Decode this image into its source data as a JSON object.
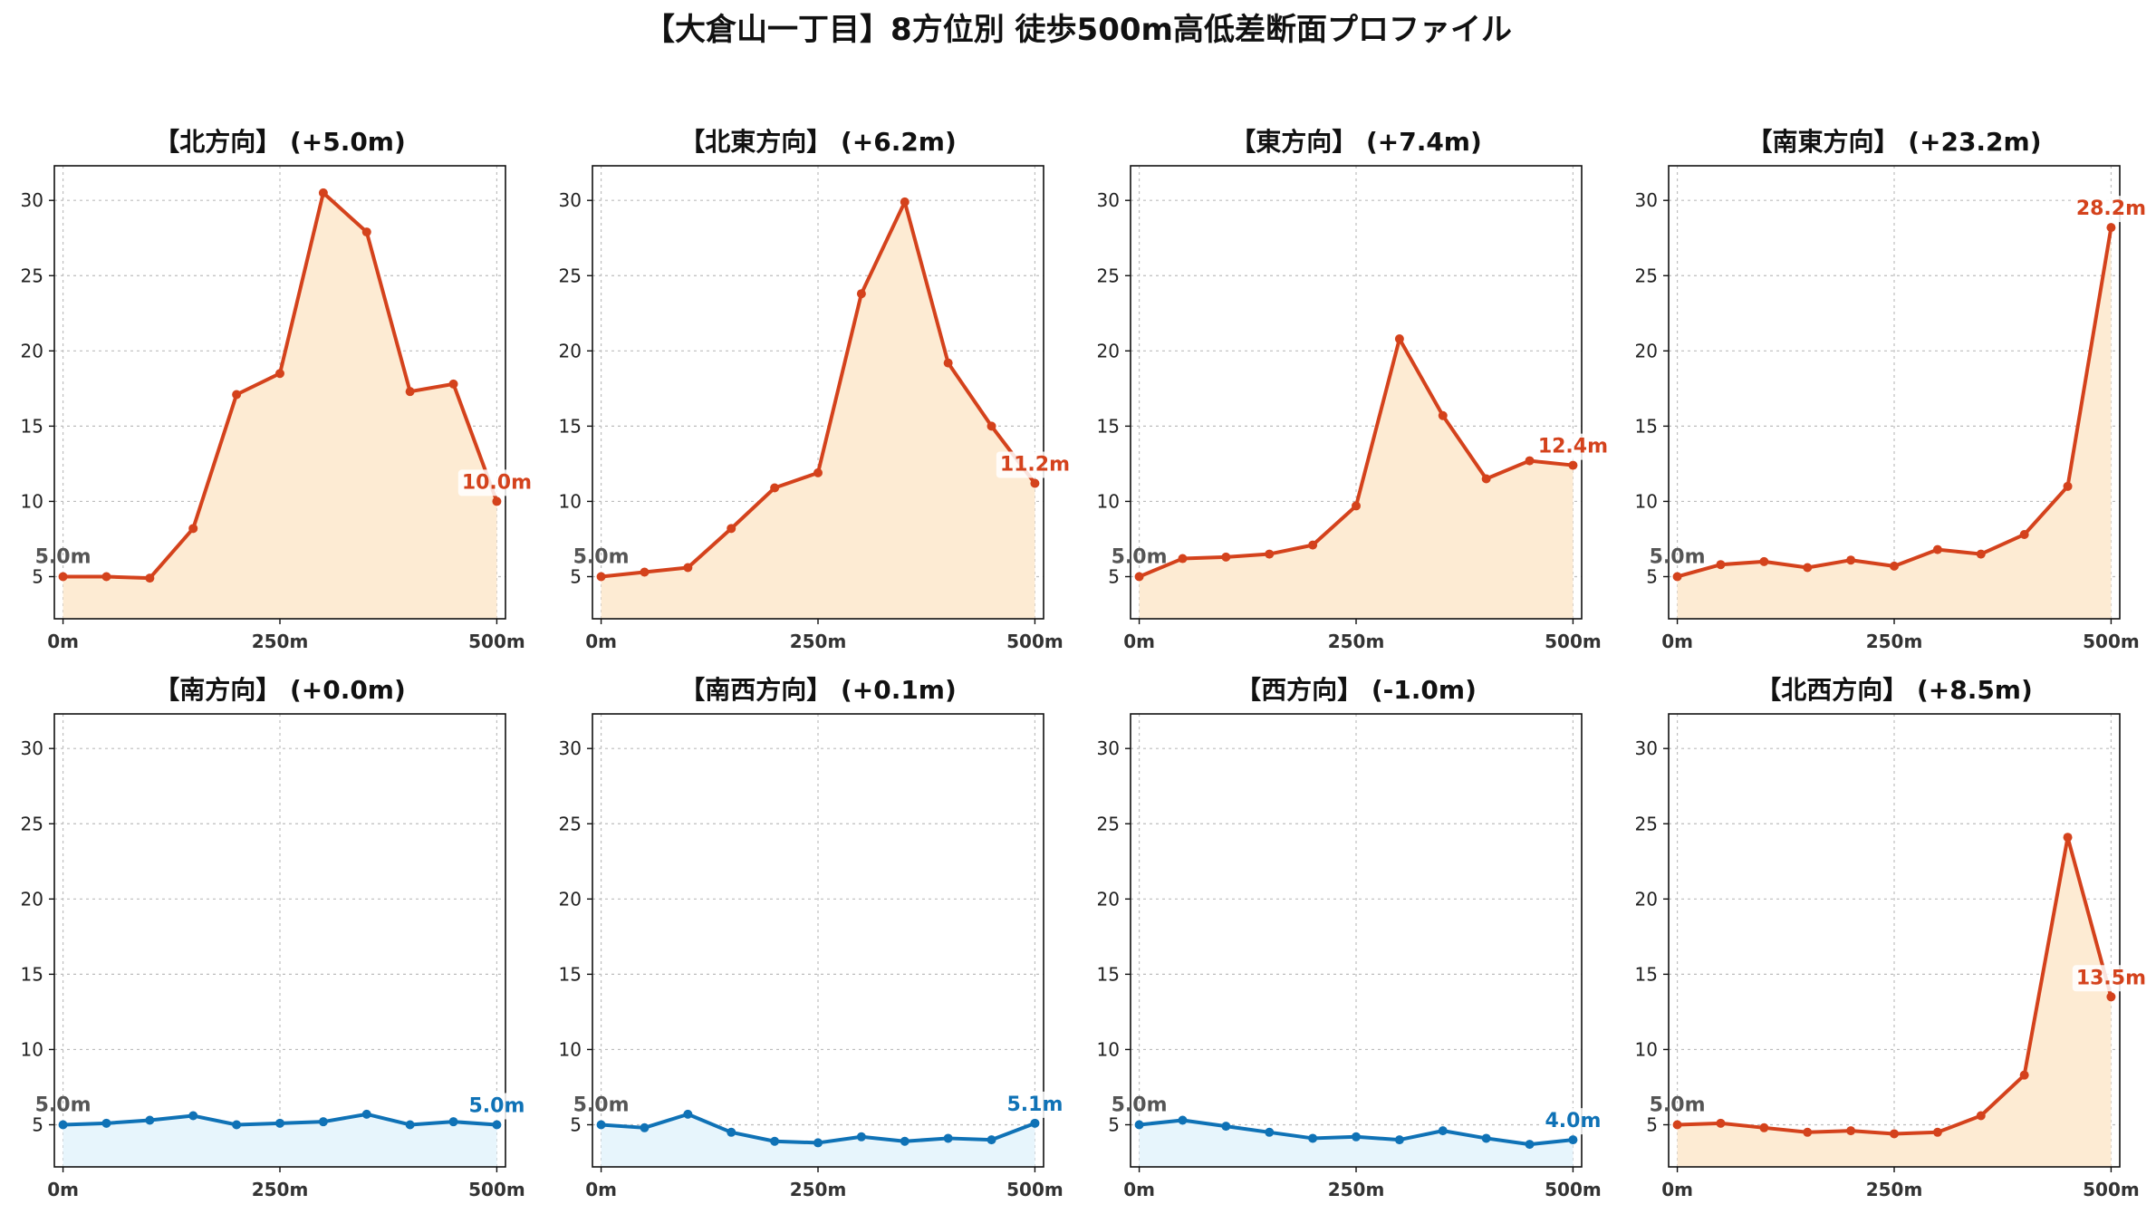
{
  "title": "【大倉山一丁目】8方位別 徒歩500m高低差断面プロファイル",
  "colors": {
    "up_line": "#d4421c",
    "up_fill": "#fdebd3",
    "down_line": "#0f72b6",
    "down_fill": "#e7f5fc"
  },
  "chart_data": [
    {
      "type": "area",
      "title": "【北方向】 (+5.0m)",
      "trend": "up",
      "x": [
        0,
        50,
        100,
        150,
        200,
        250,
        300,
        350,
        400,
        450,
        500
      ],
      "xticks": [
        0,
        250,
        500
      ],
      "xtick_labels": [
        "0m",
        "250m",
        "500m"
      ],
      "yticks": [
        5,
        10,
        15,
        20,
        25,
        30
      ],
      "ylim": [
        2.2,
        32.3
      ],
      "xlim": [
        -10,
        510
      ],
      "values": [
        5.0,
        5.0,
        4.9,
        8.2,
        17.1,
        18.5,
        30.5,
        27.9,
        17.3,
        17.8,
        10.0
      ],
      "start_label": "5.0m",
      "end_label": "10.0m",
      "grid": true
    },
    {
      "type": "area",
      "title": "【北東方向】 (+6.2m)",
      "trend": "up",
      "x": [
        0,
        50,
        100,
        150,
        200,
        250,
        300,
        350,
        400,
        450,
        500
      ],
      "xticks": [
        0,
        250,
        500
      ],
      "xtick_labels": [
        "0m",
        "250m",
        "500m"
      ],
      "yticks": [
        5,
        10,
        15,
        20,
        25,
        30
      ],
      "ylim": [
        2.2,
        32.3
      ],
      "xlim": [
        -10,
        510
      ],
      "values": [
        5.0,
        5.3,
        5.6,
        8.2,
        10.9,
        11.9,
        23.8,
        29.9,
        19.2,
        15.0,
        11.2
      ],
      "start_label": "5.0m",
      "end_label": "11.2m",
      "grid": true
    },
    {
      "type": "area",
      "title": "【東方向】 (+7.4m)",
      "trend": "up",
      "x": [
        0,
        50,
        100,
        150,
        200,
        250,
        300,
        350,
        400,
        450,
        500
      ],
      "xticks": [
        0,
        250,
        500
      ],
      "xtick_labels": [
        "0m",
        "250m",
        "500m"
      ],
      "yticks": [
        5,
        10,
        15,
        20,
        25,
        30
      ],
      "ylim": [
        2.2,
        32.3
      ],
      "xlim": [
        -10,
        510
      ],
      "values": [
        5.0,
        6.2,
        6.3,
        6.5,
        7.1,
        9.7,
        20.8,
        15.7,
        11.5,
        12.7,
        12.4
      ],
      "start_label": "5.0m",
      "end_label": "12.4m",
      "grid": true
    },
    {
      "type": "area",
      "title": "【南東方向】 (+23.2m)",
      "trend": "up",
      "x": [
        0,
        50,
        100,
        150,
        200,
        250,
        300,
        350,
        400,
        450,
        500
      ],
      "xticks": [
        0,
        250,
        500
      ],
      "xtick_labels": [
        "0m",
        "250m",
        "500m"
      ],
      "yticks": [
        5,
        10,
        15,
        20,
        25,
        30
      ],
      "ylim": [
        2.2,
        32.3
      ],
      "xlim": [
        -10,
        510
      ],
      "values": [
        5.0,
        5.8,
        6.0,
        5.6,
        6.1,
        5.7,
        6.8,
        6.5,
        7.8,
        11.0,
        28.2
      ],
      "start_label": "5.0m",
      "end_label": "28.2m",
      "grid": true
    },
    {
      "type": "area",
      "title": "【南方向】 (+0.0m)",
      "trend": "down",
      "x": [
        0,
        50,
        100,
        150,
        200,
        250,
        300,
        350,
        400,
        450,
        500
      ],
      "xticks": [
        0,
        250,
        500
      ],
      "xtick_labels": [
        "0m",
        "250m",
        "500m"
      ],
      "yticks": [
        5,
        10,
        15,
        20,
        25,
        30
      ],
      "ylim": [
        2.2,
        32.3
      ],
      "xlim": [
        -10,
        510
      ],
      "values": [
        5.0,
        5.1,
        5.3,
        5.6,
        5.0,
        5.1,
        5.2,
        5.7,
        5.0,
        5.2,
        5.0
      ],
      "start_label": "5.0m",
      "end_label": "5.0m",
      "grid": true
    },
    {
      "type": "area",
      "title": "【南西方向】 (+0.1m)",
      "trend": "down",
      "x": [
        0,
        50,
        100,
        150,
        200,
        250,
        300,
        350,
        400,
        450,
        500
      ],
      "xticks": [
        0,
        250,
        500
      ],
      "xtick_labels": [
        "0m",
        "250m",
        "500m"
      ],
      "yticks": [
        5,
        10,
        15,
        20,
        25,
        30
      ],
      "ylim": [
        2.2,
        32.3
      ],
      "xlim": [
        -10,
        510
      ],
      "values": [
        5.0,
        4.8,
        5.7,
        4.5,
        3.9,
        3.8,
        4.2,
        3.9,
        4.1,
        4.0,
        5.1
      ],
      "start_label": "5.0m",
      "end_label": "5.1m",
      "grid": true
    },
    {
      "type": "area",
      "title": "【西方向】 (-1.0m)",
      "trend": "down",
      "x": [
        0,
        50,
        100,
        150,
        200,
        250,
        300,
        350,
        400,
        450,
        500
      ],
      "xticks": [
        0,
        250,
        500
      ],
      "xtick_labels": [
        "0m",
        "250m",
        "500m"
      ],
      "yticks": [
        5,
        10,
        15,
        20,
        25,
        30
      ],
      "ylim": [
        2.2,
        32.3
      ],
      "xlim": [
        -10,
        510
      ],
      "values": [
        5.0,
        5.3,
        4.9,
        4.5,
        4.1,
        4.2,
        4.0,
        4.6,
        4.1,
        3.7,
        4.0
      ],
      "start_label": "5.0m",
      "end_label": "4.0m",
      "grid": true
    },
    {
      "type": "area",
      "title": "【北西方向】 (+8.5m)",
      "trend": "up",
      "x": [
        0,
        50,
        100,
        150,
        200,
        250,
        300,
        350,
        400,
        450,
        500
      ],
      "xticks": [
        0,
        250,
        500
      ],
      "xtick_labels": [
        "0m",
        "250m",
        "500m"
      ],
      "yticks": [
        5,
        10,
        15,
        20,
        25,
        30
      ],
      "ylim": [
        2.2,
        32.3
      ],
      "xlim": [
        -10,
        510
      ],
      "values": [
        5.0,
        5.1,
        4.8,
        4.5,
        4.6,
        4.4,
        4.5,
        5.6,
        8.3,
        24.1,
        13.5
      ],
      "start_label": "5.0m",
      "end_label": "13.5m",
      "grid": true
    }
  ]
}
